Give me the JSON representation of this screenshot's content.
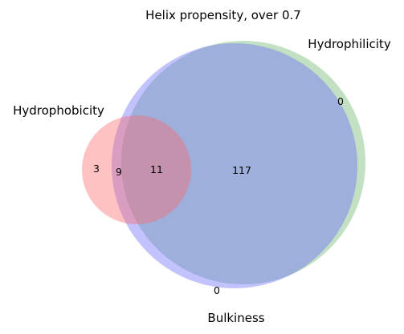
{
  "chart_data": {
    "type": "venn",
    "title": "Helix propensity, over 0.7",
    "sets": [
      {
        "name": "Hydrophobicity",
        "color": "#ff6666"
      },
      {
        "name": "Hydrophilicity",
        "color": "#66b266"
      },
      {
        "name": "Bulkiness",
        "color": "#6666ff"
      }
    ],
    "regions": [
      {
        "sets": [
          "Hydrophobicity"
        ],
        "value": 3
      },
      {
        "sets": [
          "Hydrophobicity",
          "Bulkiness"
        ],
        "value": 9
      },
      {
        "sets": [
          "Hydrophobicity",
          "Hydrophilicity",
          "Bulkiness"
        ],
        "value": 11
      },
      {
        "sets": [
          "Hydrophilicity",
          "Bulkiness"
        ],
        "value": 117
      },
      {
        "sets": [
          "Hydrophilicity"
        ],
        "value": 0
      },
      {
        "sets": [
          "Bulkiness"
        ],
        "value": 0
      }
    ]
  }
}
